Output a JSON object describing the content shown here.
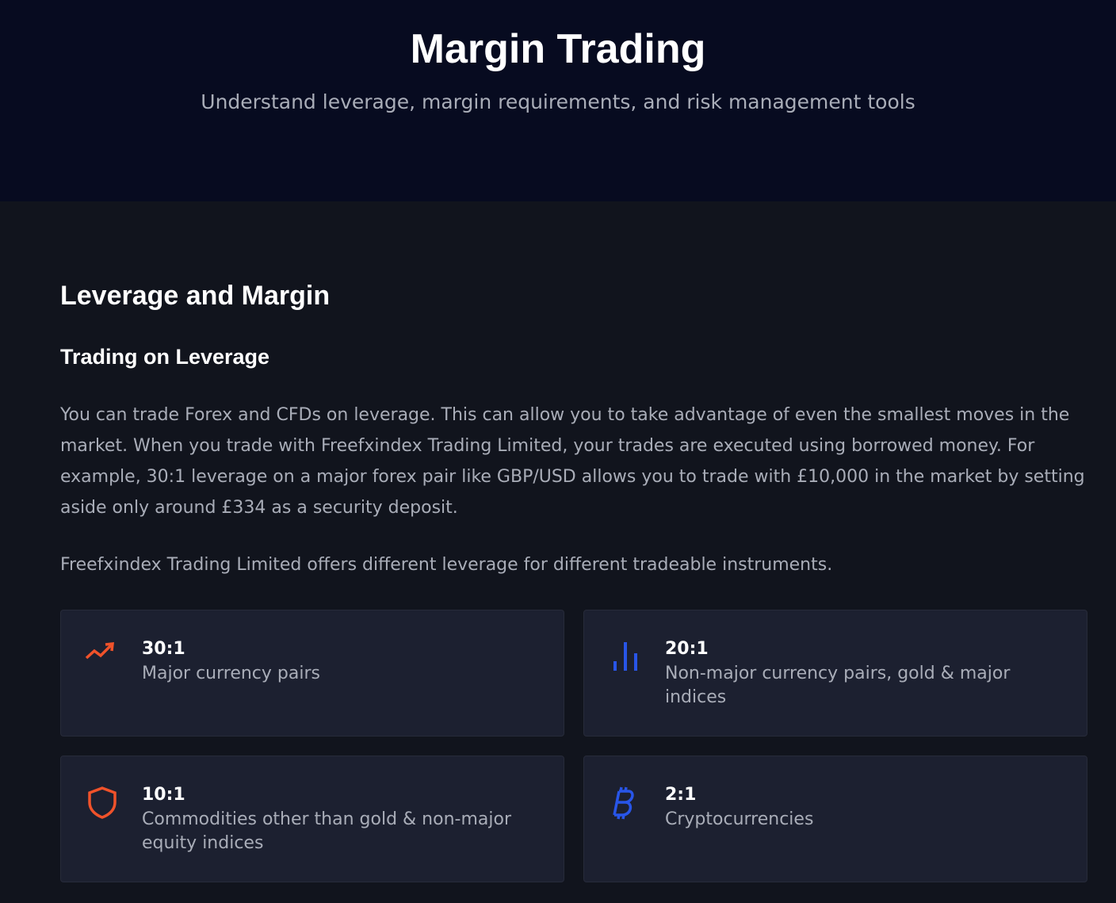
{
  "header": {
    "title": "Margin Trading",
    "subtitle": "Understand leverage, margin requirements, and risk management tools"
  },
  "section": {
    "title": "Leverage and Margin",
    "subtitle": "Trading on Leverage",
    "paragraphs": [
      "You can trade Forex and CFDs on leverage. This can allow you to take advantage of even the smallest moves in the market. When you trade with Freefxindex Trading Limited, your trades are executed using borrowed money. For example, 30:1 leverage on a major forex pair like GBP/USD allows you to trade with £10,000 in the market by setting aside only around £334 as a security deposit.",
      "Freefxindex Trading Limited offers different leverage for different tradeable instruments."
    ],
    "cards": [
      {
        "ratio": "30:1",
        "label": "Major currency pairs"
      },
      {
        "ratio": "20:1",
        "label": "Non-major currency pairs, gold & major indices"
      },
      {
        "ratio": "10:1",
        "label": "Commodities other than gold & non-major equity indices"
      },
      {
        "ratio": "2:1",
        "label": "Cryptocurrencies"
      }
    ]
  }
}
